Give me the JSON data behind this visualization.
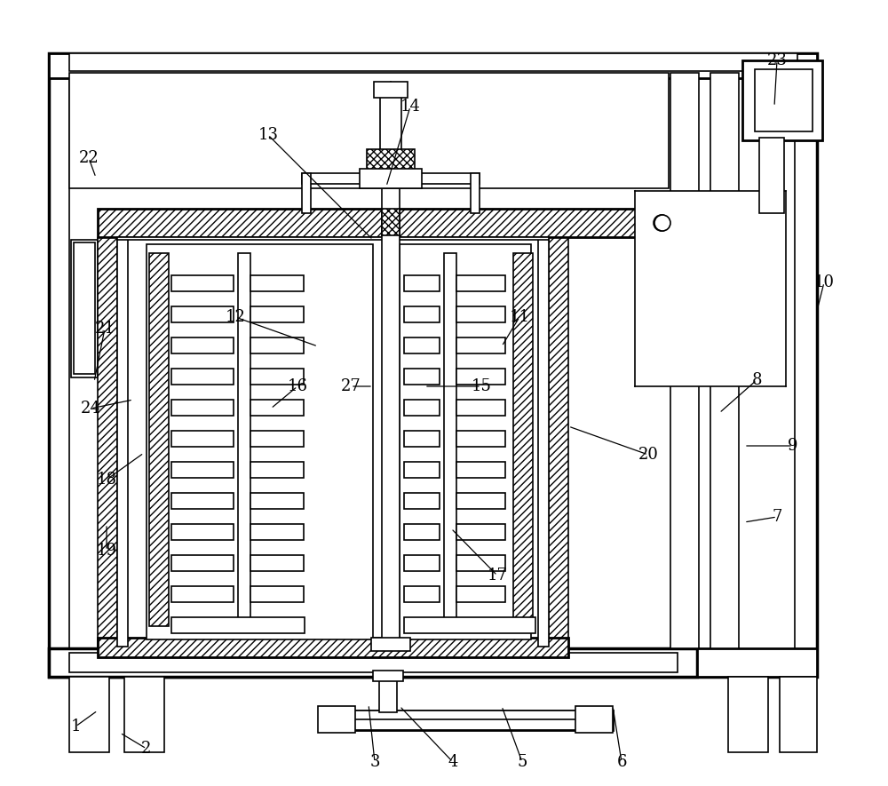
{
  "bg": "#ffffff",
  "lc": "#000000",
  "lw1": 1.2,
  "lw2": 2.0,
  "lw3": 2.5,
  "fig_w": 10.0,
  "fig_h": 8.85,
  "dpi": 100,
  "leaders": [
    [
      "1",
      85,
      818,
      110,
      800
    ],
    [
      "2",
      165,
      843,
      135,
      825
    ],
    [
      "3",
      422,
      858,
      415,
      793
    ],
    [
      "4",
      510,
      858,
      450,
      795
    ],
    [
      "5",
      588,
      858,
      565,
      795
    ],
    [
      "6",
      700,
      858,
      690,
      795
    ],
    [
      "7",
      875,
      582,
      838,
      588
    ],
    [
      "8",
      852,
      428,
      810,
      465
    ],
    [
      "9",
      893,
      502,
      838,
      502
    ],
    [
      "10",
      928,
      318,
      920,
      350
    ],
    [
      "11",
      585,
      357,
      565,
      390
    ],
    [
      "12",
      265,
      357,
      358,
      390
    ],
    [
      "13",
      302,
      152,
      420,
      270
    ],
    [
      "14",
      462,
      120,
      435,
      210
    ],
    [
      "15",
      542,
      435,
      478,
      435
    ],
    [
      "16",
      335,
      435,
      305,
      460
    ],
    [
      "17",
      560,
      648,
      508,
      595
    ],
    [
      "18",
      120,
      540,
      162,
      510
    ],
    [
      "19",
      120,
      620,
      120,
      590
    ],
    [
      "20",
      730,
      512,
      640,
      480
    ],
    [
      "21",
      118,
      370,
      106,
      430
    ],
    [
      "22",
      100,
      178,
      108,
      200
    ],
    [
      "23",
      875,
      68,
      872,
      120
    ],
    [
      "24",
      102,
      460,
      150,
      450
    ],
    [
      "27",
      395,
      435,
      420,
      435
    ]
  ]
}
